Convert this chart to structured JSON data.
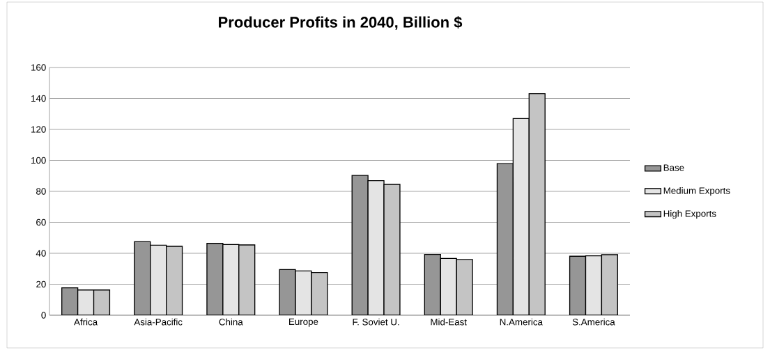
{
  "chart_data": {
    "type": "bar",
    "title": "Producer Profits in 2040, Billion $",
    "categories": [
      "Africa",
      "Asia-Pacific",
      "China",
      "Europe",
      "F. Soviet U.",
      "Mid-East",
      "N.America",
      "S.America"
    ],
    "series": [
      {
        "name": "Base",
        "color": "#969696",
        "values": [
          17.7,
          47.5,
          46.4,
          29.5,
          90.3,
          39.3,
          98.0,
          38.1
        ]
      },
      {
        "name": "Medium Exports",
        "color": "#e4e4e4",
        "values": [
          16.3,
          45.2,
          45.7,
          28.6,
          86.9,
          36.7,
          127.0,
          38.4
        ]
      },
      {
        "name": "High Exports",
        "color": "#c4c4c4",
        "values": [
          16.3,
          44.5,
          45.4,
          27.6,
          84.5,
          36.0,
          143.1,
          39.1
        ]
      }
    ],
    "ylim": [
      0,
      160
    ],
    "yticks": [
      0,
      20,
      40,
      60,
      80,
      100,
      120,
      140,
      160
    ],
    "grid": "y",
    "legend": "right"
  }
}
